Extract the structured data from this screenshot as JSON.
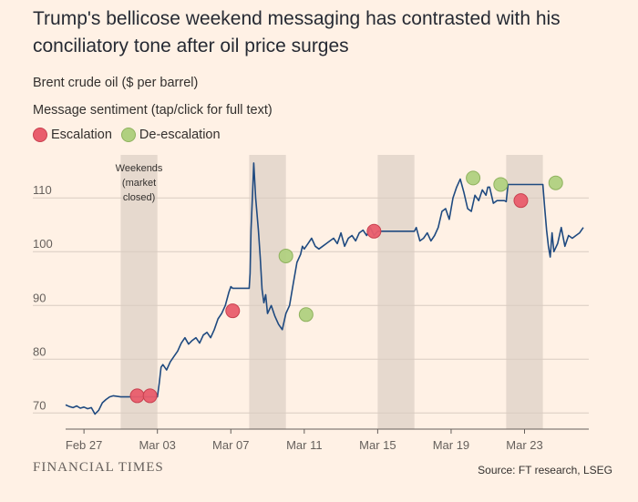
{
  "header": {
    "title": "Trump's bellicose weekend messaging has contrasted with his conciliatory tone after oil price surges",
    "subtitle1": "Brent crude oil ($ per barrel)",
    "subtitle2": "Message sentiment (tap/click for full text)"
  },
  "legend": {
    "escalation_label": "Escalation",
    "deescalation_label": "De-escalation"
  },
  "colors": {
    "background": "#fff1e5",
    "line": "#1f4a80",
    "escalation": "#e95d6c",
    "deescalation": "#b0d080",
    "weekend_band": "#e6d9ce",
    "grid": "#d9ccc1"
  },
  "chart_data": {
    "type": "line",
    "title": "Brent crude oil ($ per barrel)",
    "xlabel": "",
    "ylabel": "$ per barrel",
    "ylim": [
      67,
      118
    ],
    "xlim": [
      0,
      28.5
    ],
    "y_ticks": [
      70,
      80,
      90,
      100,
      110
    ],
    "x_ticks": [
      {
        "day": 1.0,
        "label": "Feb 27"
      },
      {
        "day": 5.0,
        "label": "Mar 03"
      },
      {
        "day": 9.0,
        "label": "Mar 07"
      },
      {
        "day": 13.0,
        "label": "Mar 11"
      },
      {
        "day": 17.0,
        "label": "Mar 15"
      },
      {
        "day": 21.0,
        "label": "Mar 19"
      },
      {
        "day": 25.0,
        "label": "Mar 23"
      }
    ],
    "weekends": [
      [
        3.0,
        5.0
      ],
      [
        10.0,
        12.0
      ],
      [
        17.0,
        19.0
      ],
      [
        24.0,
        26.0
      ]
    ],
    "weekend_annotation": "Weekends\n(market\nclosed)",
    "series": [
      {
        "name": "Brent crude oil",
        "x": [
          0.0,
          0.2,
          0.4,
          0.6,
          0.8,
          1.0,
          1.2,
          1.4,
          1.6,
          1.8,
          2.0,
          2.2,
          2.4,
          2.6,
          3.0,
          5.0,
          5.1,
          5.2,
          5.3,
          5.5,
          5.7,
          5.9,
          6.1,
          6.3,
          6.5,
          6.7,
          6.9,
          7.1,
          7.3,
          7.5,
          7.7,
          7.9,
          8.1,
          8.3,
          8.5,
          8.7,
          8.9,
          9.0,
          9.1,
          10.0,
          10.05,
          10.1,
          10.15,
          10.2,
          10.25,
          10.35,
          10.5,
          10.6,
          10.7,
          10.8,
          10.9,
          11.0,
          11.2,
          11.4,
          11.6,
          11.8,
          12.0,
          12.2,
          12.4,
          12.6,
          12.8,
          12.9,
          13.0,
          13.2,
          13.4,
          13.6,
          13.8,
          14.0,
          14.2,
          14.4,
          14.6,
          14.8,
          15.0,
          15.2,
          15.4,
          15.6,
          15.8,
          16.0,
          16.2,
          16.4,
          16.6,
          16.8,
          17.0,
          19.0,
          19.1,
          19.3,
          19.5,
          19.7,
          19.9,
          20.1,
          20.3,
          20.5,
          20.7,
          20.9,
          21.1,
          21.3,
          21.5,
          21.7,
          21.9,
          22.1,
          22.3,
          22.5,
          22.7,
          22.9,
          23.0,
          23.1,
          23.3,
          23.5,
          23.7,
          23.9,
          24.0,
          24.1,
          26.0,
          26.1,
          26.2,
          26.3,
          26.4,
          26.5,
          26.6,
          26.8,
          27.0,
          27.2,
          27.4,
          27.6,
          27.8,
          28.0,
          28.2
        ],
        "values": [
          71.5,
          71.2,
          71.0,
          71.3,
          70.9,
          71.1,
          70.8,
          71.0,
          69.8,
          70.5,
          71.9,
          72.5,
          73.0,
          73.2,
          73.0,
          73.0,
          75.5,
          78.5,
          79.0,
          78.0,
          79.5,
          80.5,
          81.5,
          83.0,
          84.0,
          82.8,
          83.5,
          84.0,
          83.0,
          84.5,
          85.0,
          84.0,
          85.5,
          87.5,
          88.5,
          90.0,
          92.5,
          93.5,
          93.2,
          93.2,
          96.0,
          104.0,
          108.0,
          112.0,
          116.5,
          110.0,
          104.0,
          99.0,
          93.0,
          90.5,
          92.0,
          88.5,
          90.0,
          88.0,
          86.5,
          85.5,
          88.5,
          90.0,
          94.0,
          98.0,
          99.5,
          101.0,
          100.5,
          101.5,
          102.5,
          101.0,
          100.5,
          101.0,
          101.5,
          102.0,
          102.5,
          101.5,
          103.5,
          101.0,
          102.5,
          103.0,
          102.0,
          103.5,
          104.0,
          103.0,
          104.5,
          103.0,
          103.8,
          103.8,
          104.5,
          102.0,
          102.5,
          103.5,
          102.0,
          103.0,
          104.5,
          107.5,
          108.0,
          106.0,
          110.0,
          112.0,
          113.5,
          111.0,
          108.0,
          107.5,
          110.5,
          109.5,
          111.5,
          110.5,
          112.0,
          112.0,
          109.0,
          109.5,
          109.5,
          109.5,
          109.3,
          112.5,
          112.5,
          108.0,
          104.0,
          101.0,
          99.0,
          103.5,
          100.0,
          101.5,
          104.5,
          101.0,
          103.0,
          102.5,
          103.0,
          103.5,
          104.5
        ]
      }
    ],
    "markers": [
      {
        "day": 3.9,
        "price": 73.2,
        "sentiment": "Escalation"
      },
      {
        "day": 4.6,
        "price": 73.2,
        "sentiment": "Escalation"
      },
      {
        "day": 9.1,
        "price": 89.0,
        "sentiment": "Escalation"
      },
      {
        "day": 12.0,
        "price": 99.2,
        "sentiment": "De-escalation"
      },
      {
        "day": 13.1,
        "price": 88.3,
        "sentiment": "De-escalation"
      },
      {
        "day": 16.8,
        "price": 103.8,
        "sentiment": "Escalation"
      },
      {
        "day": 22.2,
        "price": 113.7,
        "sentiment": "De-escalation"
      },
      {
        "day": 23.7,
        "price": 112.5,
        "sentiment": "De-escalation"
      },
      {
        "day": 24.8,
        "price": 109.5,
        "sentiment": "Escalation"
      },
      {
        "day": 26.7,
        "price": 112.8,
        "sentiment": "De-escalation"
      }
    ]
  },
  "footer": {
    "brand": "FINANCIAL TIMES",
    "source": "Source: FT research, LSEG"
  }
}
